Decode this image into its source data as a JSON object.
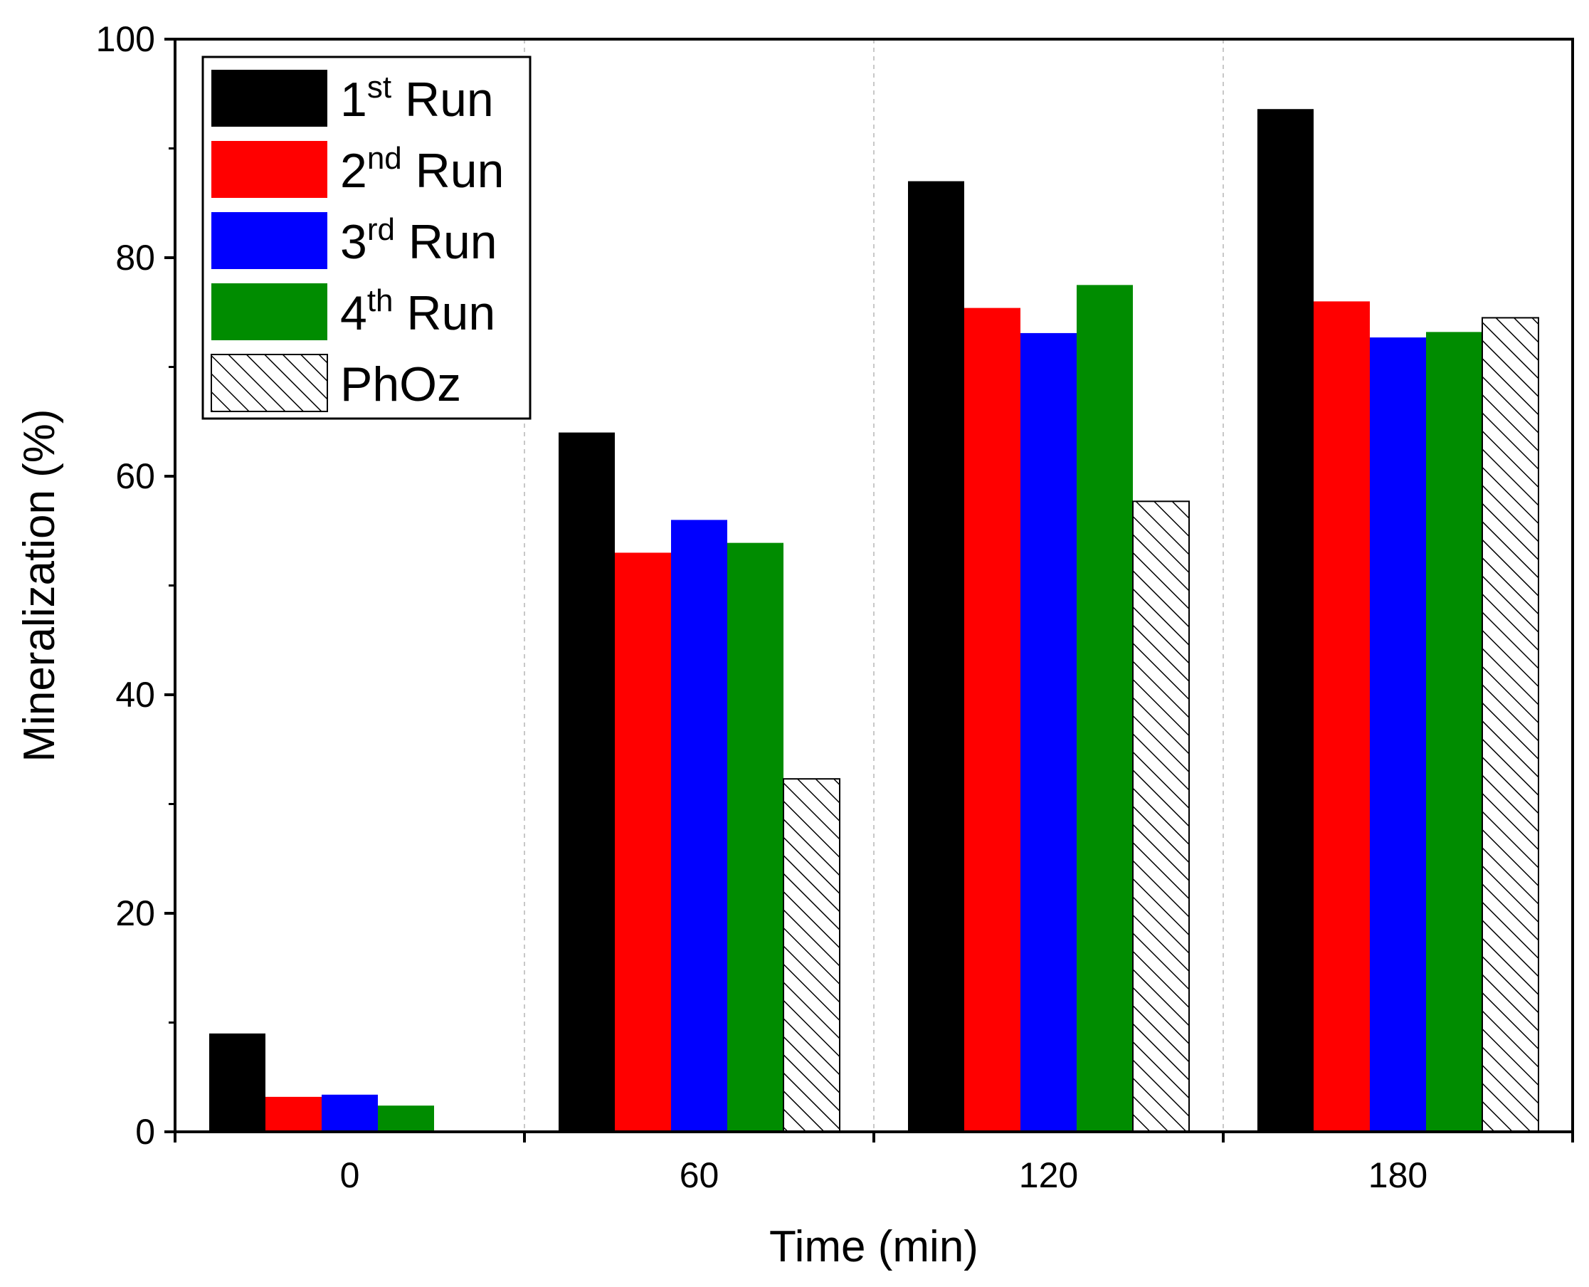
{
  "chart_data": {
    "type": "bar",
    "title": "",
    "xlabel": "Time (min)",
    "ylabel": "Mineralization (%)",
    "categories": [
      "0",
      "60",
      "120",
      "180"
    ],
    "ylim": [
      0,
      100
    ],
    "yticks": [
      0,
      20,
      40,
      60,
      80,
      100
    ],
    "ytick_labels": [
      "0",
      "20",
      "40",
      "60",
      "80",
      "100"
    ],
    "grid": "vertical dashed separators between groups",
    "legend_position": "top-left",
    "series": [
      {
        "name": "1st Run",
        "base": "1",
        "sup": "st",
        "suffix": " Run",
        "color": "#000000",
        "pattern": "solid",
        "values": [
          9.0,
          64.0,
          87.0,
          93.6
        ]
      },
      {
        "name": "2nd Run",
        "base": "2",
        "sup": "nd",
        "suffix": " Run",
        "color": "#ff0000",
        "pattern": "solid",
        "values": [
          3.2,
          53.0,
          75.4,
          76.0
        ]
      },
      {
        "name": "3rd Run",
        "base": "3",
        "sup": "rd",
        "suffix": " Run",
        "color": "#0000ff",
        "pattern": "solid",
        "values": [
          3.4,
          56.0,
          73.1,
          72.7
        ]
      },
      {
        "name": "4th Run",
        "base": "4",
        "sup": "th",
        "suffix": " Run",
        "color": "#008c00",
        "pattern": "solid",
        "values": [
          2.4,
          53.9,
          77.5,
          73.2
        ]
      },
      {
        "name": "PhOz",
        "base": "PhOz",
        "sup": "",
        "suffix": "",
        "color": "#000000",
        "pattern": "hatch",
        "values": [
          0,
          32.3,
          57.7,
          74.5
        ]
      }
    ]
  }
}
